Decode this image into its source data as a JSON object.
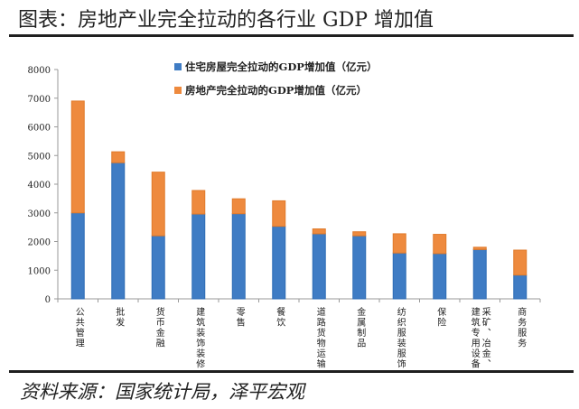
{
  "title": "图表：房地产业完全拉动的各行业 GDP 增加值",
  "source": "资料来源：国家统计局，泽平宏观",
  "colors": {
    "blue": "#3f7cc4",
    "orange": "#ee8a3e"
  },
  "chart_data": {
    "type": "bar",
    "stacked": true,
    "categories": [
      "公共管理",
      "批发",
      "货币金融",
      "建筑装饰装修",
      "零售",
      "餐饮",
      "道路货物运输",
      "金属制品",
      "纺织服装服饰",
      "保险",
      "采矿、冶金、建筑专用设备",
      "商务服务"
    ],
    "category_lines": [
      [
        "公共管理"
      ],
      [
        "批发"
      ],
      [
        "货币金融"
      ],
      [
        "建筑装饰装修"
      ],
      [
        "零售"
      ],
      [
        "餐饮"
      ],
      [
        "道路货物运输"
      ],
      [
        "金属制品"
      ],
      [
        "纺织服装服饰"
      ],
      [
        "保险"
      ],
      [
        "采矿、冶金、",
        "建筑专用设备"
      ],
      [
        "商务服务"
      ]
    ],
    "series": [
      {
        "name": "住宅房屋完全拉动的GDP增加值（亿元）",
        "color": "#3f7cc4",
        "values": [
          3000,
          4750,
          2200,
          2960,
          2970,
          2530,
          2270,
          2200,
          1600,
          1580,
          1720,
          830
        ]
      },
      {
        "name": "房地产完全拉动的GDP增加值（亿元）",
        "color": "#ee8a3e",
        "values": [
          3900,
          380,
          2220,
          820,
          520,
          890,
          170,
          140,
          670,
          670,
          80,
          870
        ]
      }
    ],
    "ylim": [
      0,
      8000
    ],
    "yticks": [
      "0",
      "1000",
      "2000",
      "3000",
      "4000",
      "5000",
      "6000",
      "7000",
      "8000"
    ],
    "grid": false,
    "legend": "top-right"
  }
}
